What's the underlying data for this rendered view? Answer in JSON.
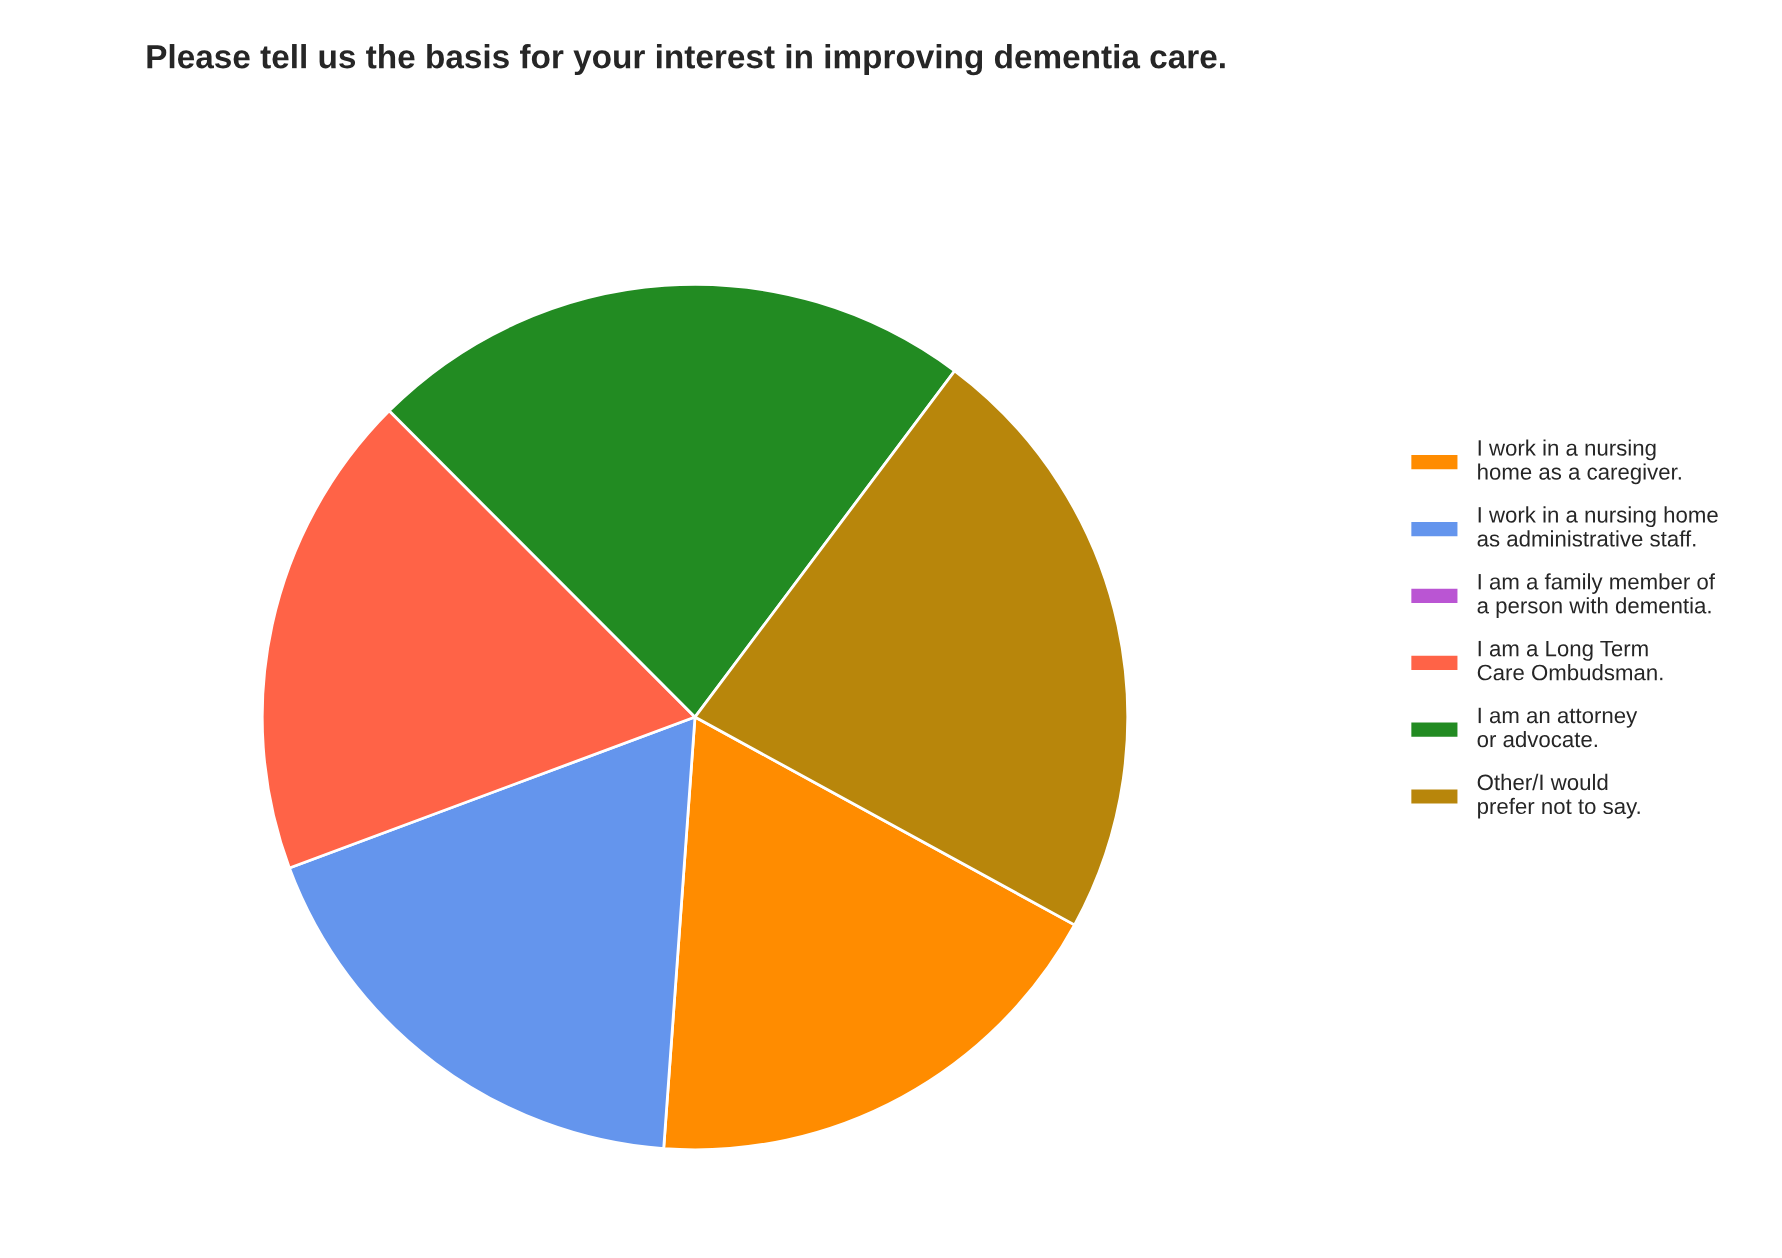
{
  "chart_data": {
    "type": "pie",
    "title": "Please tell us the basis for your interest in improving dementia care.",
    "categories": [
      "I work in a nursing\nhome as a caregiver.",
      "I work in a nursing home\nas administrative staff.",
      "I am a family member of\na person with dementia.",
      "I am a Long Term\nCare Ombudsman.",
      "I am an attorney\nor advocate.",
      "Other/I would\nprefer not to say."
    ],
    "values": [
      18.18,
      18.18,
      0,
      18.18,
      22.73,
      22.73
    ],
    "colors": [
      "#ff8c00",
      "#6495ed",
      "#ba55d3",
      "#ff6347",
      "#228b22",
      "#b8860b"
    ],
    "legend": "right"
  }
}
